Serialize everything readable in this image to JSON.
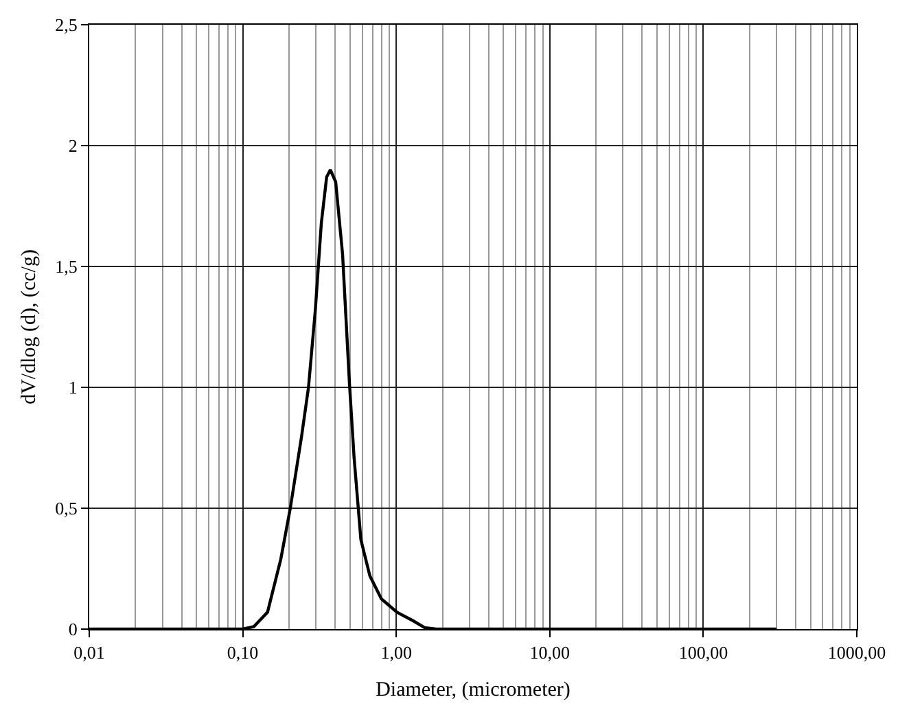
{
  "chart_data": {
    "type": "line",
    "xlabel": "Diameter, (micrometer)",
    "ylabel": "dV/dlog (d), (cc/g)",
    "log": "x",
    "grid": true,
    "marker": "none",
    "line_style": "solid",
    "xlim": [
      0.01,
      1000
    ],
    "ylim": [
      0,
      2.5
    ],
    "xticks": [
      {
        "value": 0.01,
        "label": "0,01"
      },
      {
        "value": 0.1,
        "label": "0,10"
      },
      {
        "value": 1,
        "label": "1,00"
      },
      {
        "value": 10,
        "label": "10,00"
      },
      {
        "value": 100,
        "label": "100,00"
      },
      {
        "value": 1000,
        "label": "1000,00"
      }
    ],
    "yticks": [
      0,
      {
        "value": 0.5,
        "label": "0,5"
      },
      1,
      {
        "value": 1.5,
        "label": "1,5"
      },
      2,
      {
        "value": 2.5,
        "label": "2,5"
      }
    ],
    "series": [
      {
        "color": "#000000",
        "x": [
          0.01,
          0.05,
          0.1,
          0.118,
          0.145,
          0.177,
          0.204,
          0.242,
          0.268,
          0.297,
          0.325,
          0.352,
          0.372,
          0.403,
          0.447,
          0.495,
          0.531,
          0.588,
          0.673,
          0.8,
          1.01,
          1.29,
          1.53,
          1.82,
          2.23,
          2.74,
          10,
          100,
          300
        ],
        "values": [
          0,
          0,
          0,
          0.01,
          0.07,
          0.29,
          0.5,
          0.8,
          1.0,
          1.32,
          1.68,
          1.87,
          1.9,
          1.85,
          1.55,
          1.02,
          0.71,
          0.37,
          0.22,
          0.125,
          0.07,
          0.034,
          0.006,
          0,
          0,
          0,
          0,
          0,
          0
        ]
      }
    ]
  }
}
